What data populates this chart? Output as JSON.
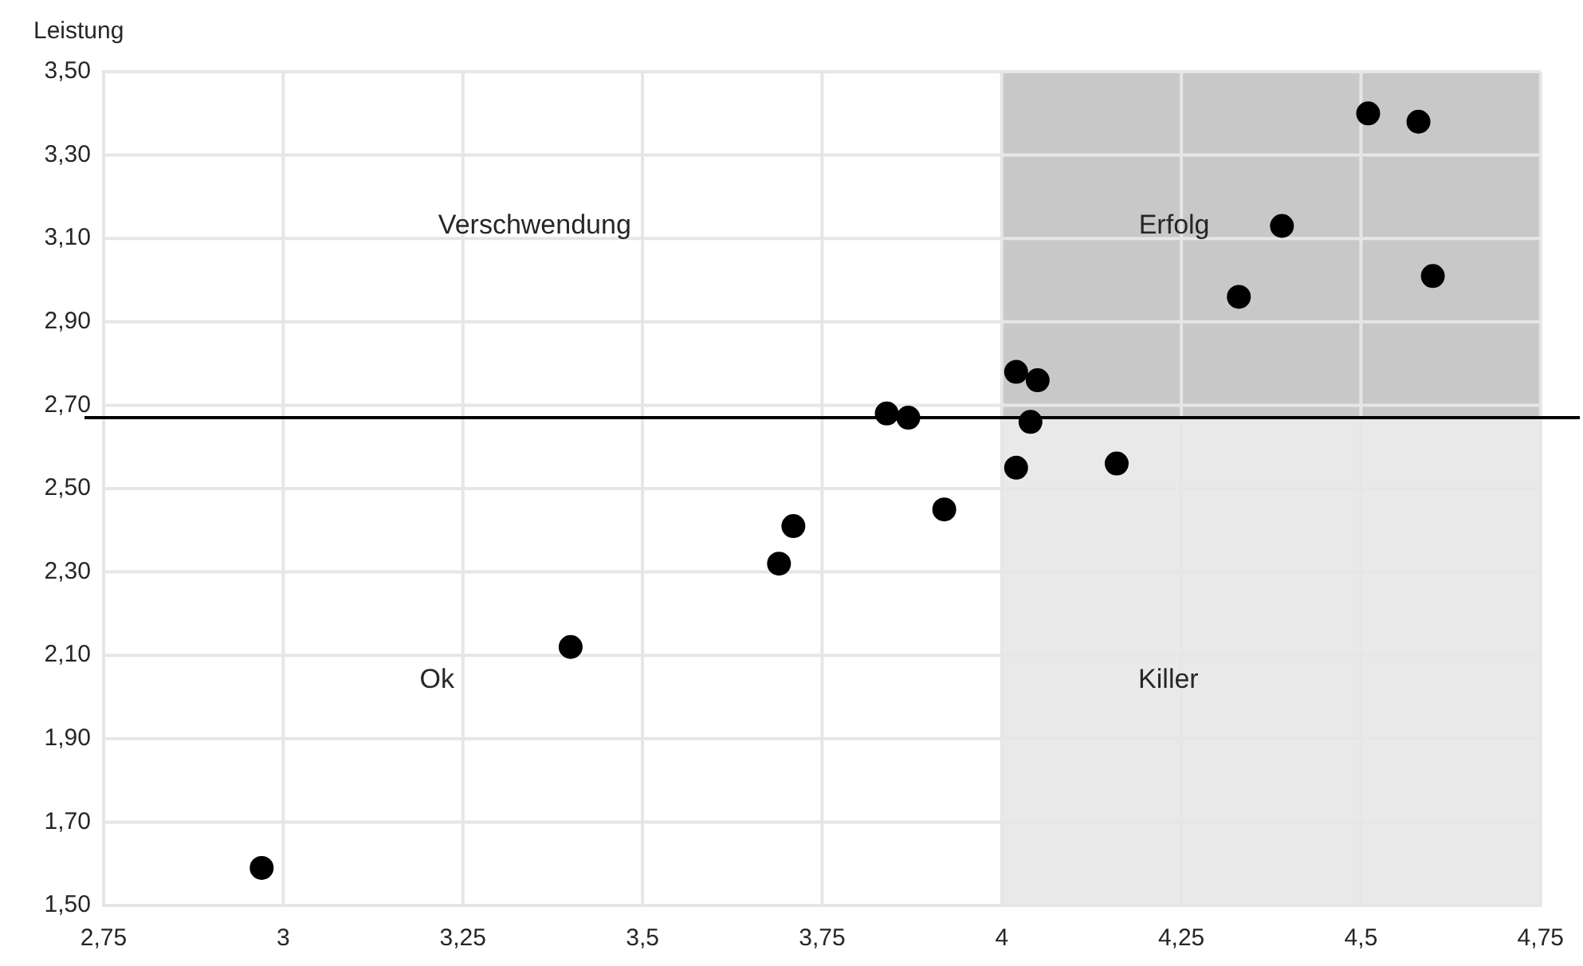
{
  "chart_data": {
    "type": "scatter",
    "ylabel": "Leistung",
    "x": [
      2.97,
      3.4,
      3.69,
      3.71,
      3.84,
      3.87,
      3.92,
      4.02,
      4.05,
      4.04,
      4.02,
      4.16,
      4.33,
      4.39,
      4.51,
      4.58,
      4.6
    ],
    "values": [
      1.59,
      2.12,
      2.32,
      2.41,
      2.68,
      2.67,
      2.45,
      2.78,
      2.76,
      2.66,
      2.55,
      2.56,
      2.96,
      3.13,
      3.4,
      3.38,
      3.01
    ],
    "color": "#000000",
    "marker": "circle",
    "xlim": [
      2.75,
      4.75
    ],
    "xticks": [
      {
        "value": 2.75,
        "label": "2,75"
      },
      3,
      {
        "value": 3.25,
        "label": "3,25"
      },
      {
        "value": 3.5,
        "label": "3,5"
      },
      {
        "value": 3.75,
        "label": "3,75"
      },
      4,
      {
        "value": 4.25,
        "label": "4,25"
      },
      {
        "value": 4.5,
        "label": "4,5"
      },
      {
        "value": 4.75,
        "label": "4,75"
      }
    ],
    "ylim": [
      1.5,
      3.5
    ],
    "yticks": [
      {
        "value": 1.5,
        "label": "1,50"
      },
      {
        "value": 1.7,
        "label": "1,70"
      },
      {
        "value": 1.9,
        "label": "1,90"
      },
      {
        "value": 2.1,
        "label": "2,10"
      },
      {
        "value": 2.3,
        "label": "2,30"
      },
      {
        "value": 2.5,
        "label": "2,50"
      },
      {
        "value": 2.7,
        "label": "2,70"
      },
      {
        "value": 2.9,
        "label": "2,90"
      },
      {
        "value": 3.1,
        "label": "3,10"
      },
      {
        "value": 3.3,
        "label": "3,30"
      },
      {
        "value": 3.5,
        "label": "3,50"
      }
    ],
    "grid": true,
    "legend": false,
    "ref_lines": [
      {
        "axis": "y",
        "value": 2.67,
        "color": "#000000"
      }
    ],
    "bands": [
      {
        "axis": "x",
        "from": 4,
        "to": 4.75,
        "color": "#e9e9e9"
      },
      {
        "axis": "x",
        "from": 4,
        "to": 4.75,
        "color": "#c8c8c8"
      }
    ],
    "annotations": [
      "Verschwendung",
      "Erfolg",
      "Ok",
      "Killer"
    ]
  }
}
